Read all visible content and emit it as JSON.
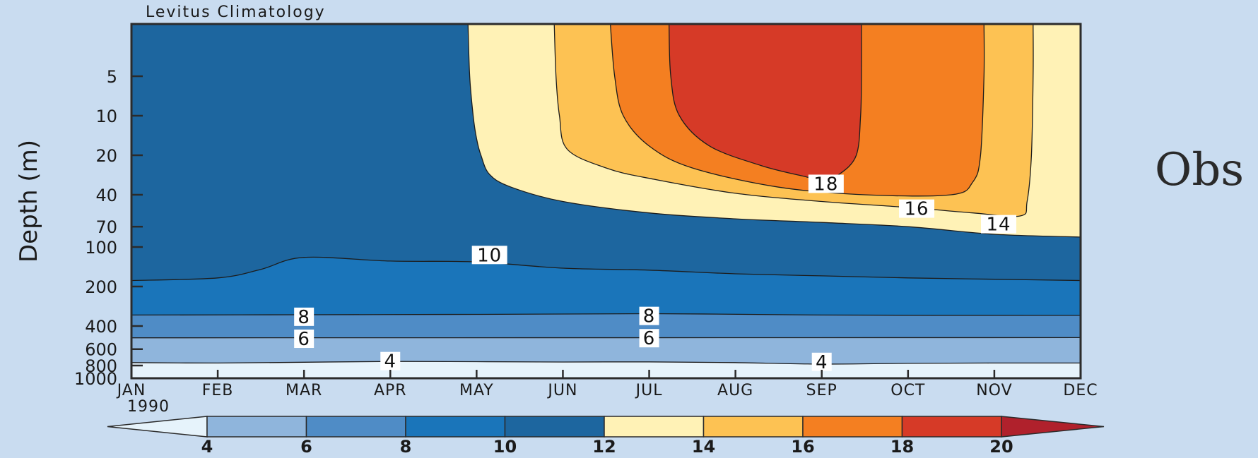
{
  "colors": {
    "background": "#c9dcf0",
    "outline": "#2b2b2b",
    "levels": [
      "#e6f3fb",
      "#8fb5dc",
      "#4f8cc6",
      "#1a75ba",
      "#1d669f",
      "#fff2b6",
      "#fdc253",
      "#f47f21",
      "#d63a27",
      "#b0212c"
    ]
  },
  "side_label": "Obs",
  "chart_data": {
    "type": "contour",
    "title": "Levitus Climatology",
    "ylabel": "Depth (m)",
    "xlabel": "",
    "x_ticks": [
      "JAN",
      "FEB",
      "MAR",
      "APR",
      "MAY",
      "JUN",
      "JUL",
      "AUG",
      "SEP",
      "OCT",
      "NOV",
      "DEC"
    ],
    "x_year_label": "1990",
    "y_ticks": [
      "5",
      "10",
      "20",
      "40",
      "70",
      "100",
      "200",
      "400",
      "600",
      "800",
      "1000"
    ],
    "y_tick_values": [
      5,
      10,
      20,
      40,
      70,
      100,
      200,
      400,
      600,
      800,
      1000
    ],
    "y_range": [
      1000,
      2
    ],
    "y_scale": "log",
    "colorbar": {
      "levels": [
        4,
        6,
        8,
        10,
        12,
        14,
        16,
        18,
        20
      ],
      "labels": [
        "4",
        "6",
        "8",
        "10",
        "12",
        "14",
        "16",
        "18",
        "20"
      ],
      "extend": "both"
    },
    "contour_labels": [
      {
        "text": "18",
        "month": 8.05,
        "depth": 33
      },
      {
        "text": "16",
        "month": 9.1,
        "depth": 51
      },
      {
        "text": "14",
        "month": 10.05,
        "depth": 67
      },
      {
        "text": "10",
        "month": 4.15,
        "depth": 115
      },
      {
        "text": "8",
        "month": 2.0,
        "depth": 340
      },
      {
        "text": "8",
        "month": 6.0,
        "depth": 335
      },
      {
        "text": "6",
        "month": 2.0,
        "depth": 500
      },
      {
        "text": "6",
        "month": 6.0,
        "depth": 495
      },
      {
        "text": "4",
        "month": 3.0,
        "depth": 740
      },
      {
        "text": "4",
        "month": 8.0,
        "depth": 750
      }
    ],
    "isotherms": [
      {
        "level": 4,
        "points": [
          [
            0,
            760
          ],
          [
            1,
            765
          ],
          [
            2,
            755
          ],
          [
            3,
            745
          ],
          [
            4,
            748
          ],
          [
            5,
            752
          ],
          [
            6,
            750
          ],
          [
            7,
            760
          ],
          [
            8,
            780
          ],
          [
            9,
            770
          ],
          [
            10,
            765
          ],
          [
            11,
            765
          ]
        ]
      },
      {
        "level": 6,
        "points": [
          [
            0,
            492
          ],
          [
            11,
            490
          ]
        ]
      },
      {
        "level": 8,
        "points": [
          [
            0,
            330
          ],
          [
            2,
            328
          ],
          [
            4,
            326
          ],
          [
            6,
            322
          ],
          [
            8,
            330
          ],
          [
            11,
            332
          ]
        ]
      },
      {
        "level": 10,
        "points": [
          [
            0,
            180
          ],
          [
            1,
            172
          ],
          [
            1.5,
            148
          ],
          [
            2,
            120
          ],
          [
            3,
            128
          ],
          [
            4,
            130
          ],
          [
            5,
            145
          ],
          [
            6,
            150
          ],
          [
            7,
            160
          ],
          [
            8,
            166
          ],
          [
            9,
            172
          ],
          [
            10,
            176
          ],
          [
            11,
            180
          ]
        ]
      },
      {
        "level": 12,
        "points": [
          [
            3.9,
            2
          ],
          [
            3.92,
            5
          ],
          [
            3.96,
            10
          ],
          [
            4.0,
            15
          ],
          [
            4.05,
            20
          ],
          [
            4.15,
            28
          ],
          [
            4.4,
            35
          ],
          [
            5,
            45
          ],
          [
            6,
            55
          ],
          [
            7,
            61
          ],
          [
            8,
            65
          ],
          [
            9,
            70
          ],
          [
            10,
            80
          ],
          [
            11,
            84
          ]
        ]
      },
      {
        "level": 14,
        "points": [
          [
            4.9,
            2
          ],
          [
            4.92,
            5
          ],
          [
            4.96,
            10
          ],
          [
            5.05,
            18
          ],
          [
            5.5,
            25
          ],
          [
            6,
            30
          ],
          [
            7,
            39
          ],
          [
            8,
            45
          ],
          [
            9,
            50
          ],
          [
            9.75,
            55
          ],
          [
            10.3,
            58
          ],
          [
            10.38,
            45
          ],
          [
            10.43,
            20
          ],
          [
            10.45,
            5
          ],
          [
            10.45,
            2
          ]
        ]
      },
      {
        "level": 16,
        "points": [
          [
            5.55,
            2
          ],
          [
            5.6,
            5
          ],
          [
            5.7,
            10
          ],
          [
            6,
            17
          ],
          [
            6.5,
            25
          ],
          [
            7.5,
            35
          ],
          [
            8.5,
            40
          ],
          [
            9.5,
            40
          ],
          [
            9.75,
            32
          ],
          [
            9.84,
            20
          ],
          [
            9.88,
            5
          ],
          [
            9.88,
            2
          ]
        ]
      },
      {
        "level": 18,
        "points": [
          [
            6.23,
            2
          ],
          [
            6.25,
            5
          ],
          [
            6.35,
            10
          ],
          [
            6.7,
            17
          ],
          [
            7.3,
            24
          ],
          [
            7.8,
            29
          ],
          [
            8.0,
            31
          ],
          [
            8.2,
            28
          ],
          [
            8.4,
            20
          ],
          [
            8.45,
            10
          ],
          [
            8.46,
            5
          ],
          [
            8.46,
            2
          ]
        ]
      }
    ]
  }
}
